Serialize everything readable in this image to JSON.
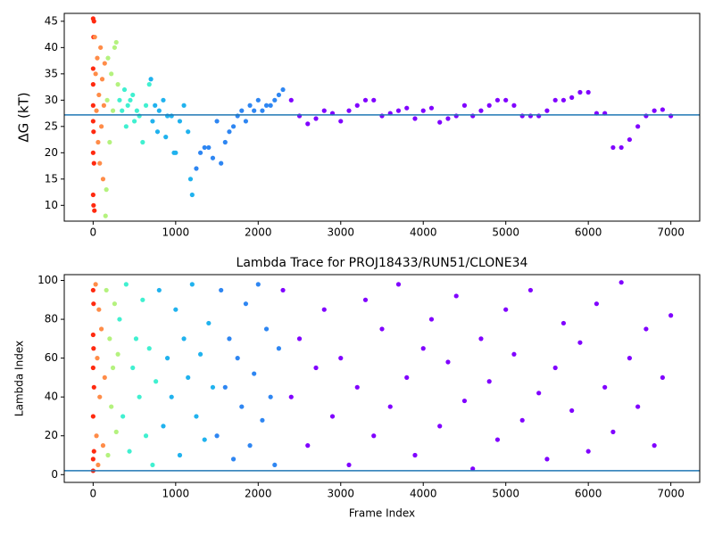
{
  "chart_data": [
    {
      "type": "scatter",
      "ylabel": "ΔG (kT)",
      "xlim": [
        -350,
        7350
      ],
      "ylim": [
        7,
        46.5
      ],
      "xticks": [
        0,
        1000,
        2000,
        3000,
        4000,
        5000,
        6000,
        7000
      ],
      "yticks": [
        10,
        15,
        20,
        25,
        30,
        35,
        40,
        45
      ],
      "hline": 27.2,
      "hline_color": "#1f77b4",
      "series": [
        {
          "color": "#ff2a10",
          "x": [
            0,
            0,
            0,
            0,
            0,
            0,
            0,
            5,
            5,
            5,
            10,
            10,
            15
          ],
          "values": [
            45.5,
            36,
            33,
            29,
            26,
            20,
            12,
            10,
            42,
            24,
            18,
            45,
            9
          ]
        },
        {
          "color": "#ff8c48",
          "x": [
            20,
            30,
            40,
            50,
            60,
            70,
            80,
            90,
            100,
            110,
            120,
            130,
            140
          ],
          "values": [
            42,
            35,
            28,
            38,
            22,
            31,
            18,
            40,
            25,
            34,
            15,
            29,
            37
          ]
        },
        {
          "color": "#b4f27e",
          "x": [
            150,
            160,
            170,
            180,
            200,
            220,
            240,
            260,
            280,
            300
          ],
          "values": [
            8,
            13,
            30,
            38,
            22,
            35,
            28,
            40,
            41,
            33
          ]
        },
        {
          "color": "#40f0d0",
          "x": [
            320,
            350,
            380,
            400,
            420,
            450,
            480,
            500,
            530,
            560,
            600,
            640,
            680
          ],
          "values": [
            30,
            28,
            32,
            25,
            29,
            30,
            31,
            26,
            28,
            27,
            22,
            29,
            33
          ]
        },
        {
          "color": "#20b2ee",
          "x": [
            700,
            720,
            750,
            780,
            800,
            850,
            880,
            900,
            950,
            980,
            1000,
            1050,
            1100,
            1150,
            1180,
            1200
          ],
          "values": [
            34,
            26,
            29,
            24,
            28,
            30,
            23,
            27,
            27,
            20,
            20,
            26,
            29,
            24,
            15,
            12
          ]
        },
        {
          "color": "#2e86f2",
          "x": [
            1250,
            1300,
            1350,
            1400,
            1450,
            1500,
            1550,
            1600,
            1650,
            1700,
            1750,
            1800,
            1850,
            1900,
            1950,
            2000,
            2050,
            2100,
            2150,
            2200,
            2250,
            2300
          ],
          "values": [
            17,
            20,
            21,
            21,
            19,
            26,
            18,
            22,
            24,
            25,
            27,
            28,
            26,
            29,
            28,
            30,
            28,
            29,
            29,
            30,
            31,
            32
          ]
        },
        {
          "color": "#8000ff",
          "x": [
            2400,
            2500,
            2600,
            2700,
            2800,
            2900,
            3000,
            3100,
            3200,
            3300,
            3400,
            3500,
            3600,
            3700,
            3800,
            3900,
            4000,
            4100,
            4200,
            4300,
            4400,
            4500,
            4600,
            4700,
            4800,
            4900,
            5000,
            5100,
            5200,
            5300,
            5400,
            5500,
            5600,
            5700,
            5800,
            5900,
            6000,
            6100,
            6200,
            6300,
            6400,
            6500,
            6600,
            6700,
            6800,
            6900,
            7000
          ],
          "values": [
            30,
            27,
            25.5,
            26.5,
            28,
            27.5,
            26,
            28,
            29,
            30,
            30,
            27,
            27.5,
            28,
            28.5,
            26.5,
            28,
            28.5,
            25.8,
            26.5,
            27,
            29,
            27,
            28,
            29,
            30,
            30,
            29,
            27,
            27,
            27,
            28,
            30,
            30,
            30.5,
            31.5,
            31.5,
            27.5,
            27.5,
            21,
            21,
            22.5,
            25,
            27,
            28,
            28.2,
            27
          ]
        }
      ]
    },
    {
      "type": "scatter",
      "title": "Lambda Trace for PROJ18433/RUN51/CLONE34",
      "xlabel": "Frame Index",
      "ylabel": "Lambda Index",
      "xlim": [
        -350,
        7350
      ],
      "ylim": [
        -4,
        103
      ],
      "xticks": [
        0,
        1000,
        2000,
        3000,
        4000,
        5000,
        6000,
        7000
      ],
      "yticks": [
        0,
        20,
        40,
        60,
        80,
        100
      ],
      "hline": 2,
      "hline_color": "#1f77b4",
      "series": [
        {
          "color": "#ff2a10",
          "x": [
            0,
            0,
            0,
            0,
            0,
            0,
            5,
            5,
            10,
            10
          ],
          "values": [
            95,
            72,
            55,
            30,
            8,
            2,
            88,
            65,
            12,
            45
          ]
        },
        {
          "color": "#ff8c48",
          "x": [
            30,
            40,
            50,
            60,
            70,
            80,
            100,
            120,
            140
          ],
          "values": [
            98,
            20,
            60,
            5,
            85,
            40,
            75,
            15,
            50
          ]
        },
        {
          "color": "#b4f27e",
          "x": [
            160,
            180,
            200,
            220,
            240,
            260,
            280,
            300
          ],
          "values": [
            95,
            10,
            70,
            35,
            55,
            88,
            22,
            62
          ]
        },
        {
          "color": "#40f0d0",
          "x": [
            320,
            360,
            400,
            440,
            480,
            520,
            560,
            600,
            640,
            680,
            720,
            760
          ],
          "values": [
            80,
            30,
            98,
            12,
            55,
            70,
            40,
            90,
            20,
            65,
            5,
            48
          ]
        },
        {
          "color": "#20b2ee",
          "x": [
            800,
            850,
            900,
            950,
            1000,
            1050,
            1100,
            1150,
            1200,
            1250,
            1300,
            1350,
            1400,
            1450
          ],
          "values": [
            95,
            25,
            60,
            40,
            85,
            10,
            70,
            50,
            98,
            30,
            62,
            18,
            78,
            45
          ]
        },
        {
          "color": "#2e86f2",
          "x": [
            1500,
            1550,
            1600,
            1650,
            1700,
            1750,
            1800,
            1850,
            1900,
            1950,
            2000,
            2050,
            2100,
            2150,
            2200,
            2250
          ],
          "values": [
            20,
            95,
            45,
            70,
            8,
            60,
            35,
            88,
            15,
            52,
            98,
            28,
            75,
            40,
            5,
            65
          ]
        },
        {
          "color": "#8000ff",
          "x": [
            2300,
            2400,
            2500,
            2600,
            2700,
            2800,
            2900,
            3000,
            3100,
            3200,
            3300,
            3400,
            3500,
            3600,
            3700,
            3800,
            3900,
            4000,
            4100,
            4200,
            4300,
            4400,
            4500,
            4600,
            4700,
            4800,
            4900,
            5000,
            5100,
            5200,
            5300,
            5400,
            5500,
            5600,
            5700,
            5800,
            5900,
            6000,
            6100,
            6200,
            6300,
            6400,
            6500,
            6600,
            6700,
            6800,
            6900,
            7000
          ],
          "values": [
            95,
            40,
            70,
            15,
            55,
            85,
            30,
            60,
            5,
            45,
            90,
            20,
            75,
            35,
            98,
            50,
            10,
            65,
            80,
            25,
            58,
            92,
            38,
            3,
            70,
            48,
            18,
            85,
            62,
            28,
            95,
            42,
            8,
            55,
            78,
            33,
            68,
            12,
            88,
            45,
            22,
            99,
            60,
            35,
            75,
            15,
            50,
            82
          ]
        }
      ]
    }
  ]
}
